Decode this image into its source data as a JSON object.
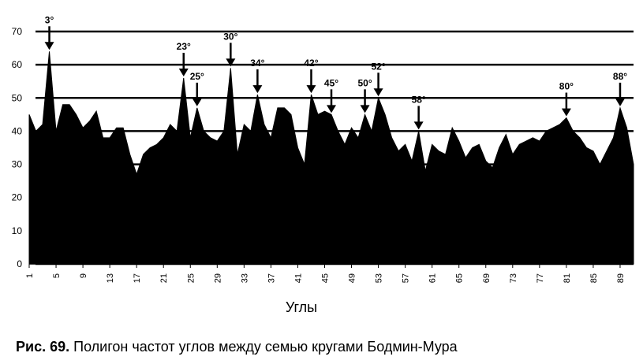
{
  "chart_data": {
    "type": "area",
    "x_label": "Углы",
    "caption_label": "Рис. 69.",
    "caption_text": "Полигон частот углов между семью кругами Бодмин-Мура",
    "x": [
      1,
      2,
      3,
      4,
      5,
      6,
      7,
      8,
      9,
      10,
      11,
      12,
      13,
      14,
      15,
      16,
      17,
      18,
      19,
      20,
      21,
      22,
      23,
      24,
      25,
      26,
      27,
      28,
      29,
      30,
      31,
      32,
      33,
      34,
      35,
      36,
      37,
      38,
      39,
      40,
      41,
      42,
      43,
      44,
      45,
      46,
      47,
      48,
      49,
      50,
      51,
      52,
      53,
      54,
      55,
      56,
      57,
      58,
      59,
      60,
      61,
      62,
      63,
      64,
      65,
      66,
      67,
      68,
      69,
      70,
      71,
      72,
      73,
      74,
      75,
      76,
      77,
      78,
      79,
      80,
      81,
      82,
      83,
      84,
      85,
      86,
      87,
      88,
      89,
      90,
      91
    ],
    "values": [
      45,
      40,
      42,
      64,
      40,
      48,
      48,
      45,
      41,
      43,
      46,
      38,
      38,
      41,
      41,
      33,
      27,
      33,
      35,
      36,
      38,
      42,
      40,
      56,
      38,
      47,
      40,
      38,
      37,
      40,
      59,
      33,
      42,
      40,
      51,
      42,
      38,
      47,
      47,
      45,
      35,
      30,
      51,
      45,
      46,
      45,
      40,
      36,
      41,
      38,
      45,
      40,
      50,
      45,
      38,
      34,
      36,
      31,
      40,
      28,
      36,
      34,
      33,
      41,
      37,
      32,
      35,
      36,
      31,
      29,
      35,
      39,
      33,
      36,
      37,
      38,
      37,
      40,
      41,
      42,
      44,
      40,
      38,
      35,
      34,
      30,
      34,
      38,
      47,
      41,
      30
    ],
    "color": "#000000",
    "xlim": [
      1,
      91
    ],
    "ylim": [
      0,
      70
    ],
    "xticks": [
      1,
      5,
      9,
      13,
      17,
      21,
      25,
      29,
      33,
      37,
      41,
      45,
      49,
      53,
      57,
      61,
      65,
      69,
      73,
      77,
      81,
      85,
      89
    ],
    "yticks": [
      0,
      10,
      20,
      30,
      40,
      50,
      60,
      70
    ],
    "grid": true,
    "annotations": [
      {
        "text": "3°",
        "x": 4
      },
      {
        "text": "23°",
        "x": 24
      },
      {
        "text": "25°",
        "x": 26
      },
      {
        "text": "30°",
        "x": 31
      },
      {
        "text": "34°",
        "x": 35
      },
      {
        "text": "42°",
        "x": 43
      },
      {
        "text": "45°",
        "x": 46
      },
      {
        "text": "50°",
        "x": 51
      },
      {
        "text": "52°",
        "x": 53
      },
      {
        "text": "58°",
        "x": 59
      },
      {
        "text": "80°",
        "x": 81
      },
      {
        "text": "88°",
        "x": 89
      }
    ]
  }
}
